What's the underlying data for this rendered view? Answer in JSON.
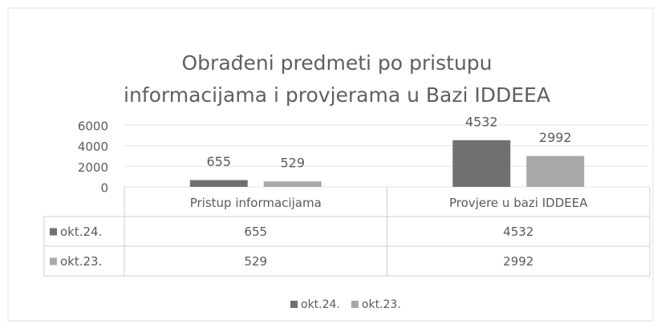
{
  "chart_data": {
    "type": "bar",
    "title": [
      "Obrađeni predmeti po pristupu",
      "informacijama i provjerama u Bazi IDDEEA"
    ],
    "categories": [
      "Pristup informacijama",
      "Provjere u bazi IDDEEA"
    ],
    "series": [
      {
        "name": "okt.24.",
        "color": "#707070",
        "values": [
          655,
          4532
        ]
      },
      {
        "name": "okt.23.",
        "color": "#a8a8a8",
        "values": [
          529,
          2992
        ]
      }
    ],
    "ylim": [
      0,
      6000
    ],
    "yticks": [
      0,
      2000,
      4000,
      6000
    ],
    "grid": true,
    "data_table": true,
    "legend": "bottom"
  }
}
